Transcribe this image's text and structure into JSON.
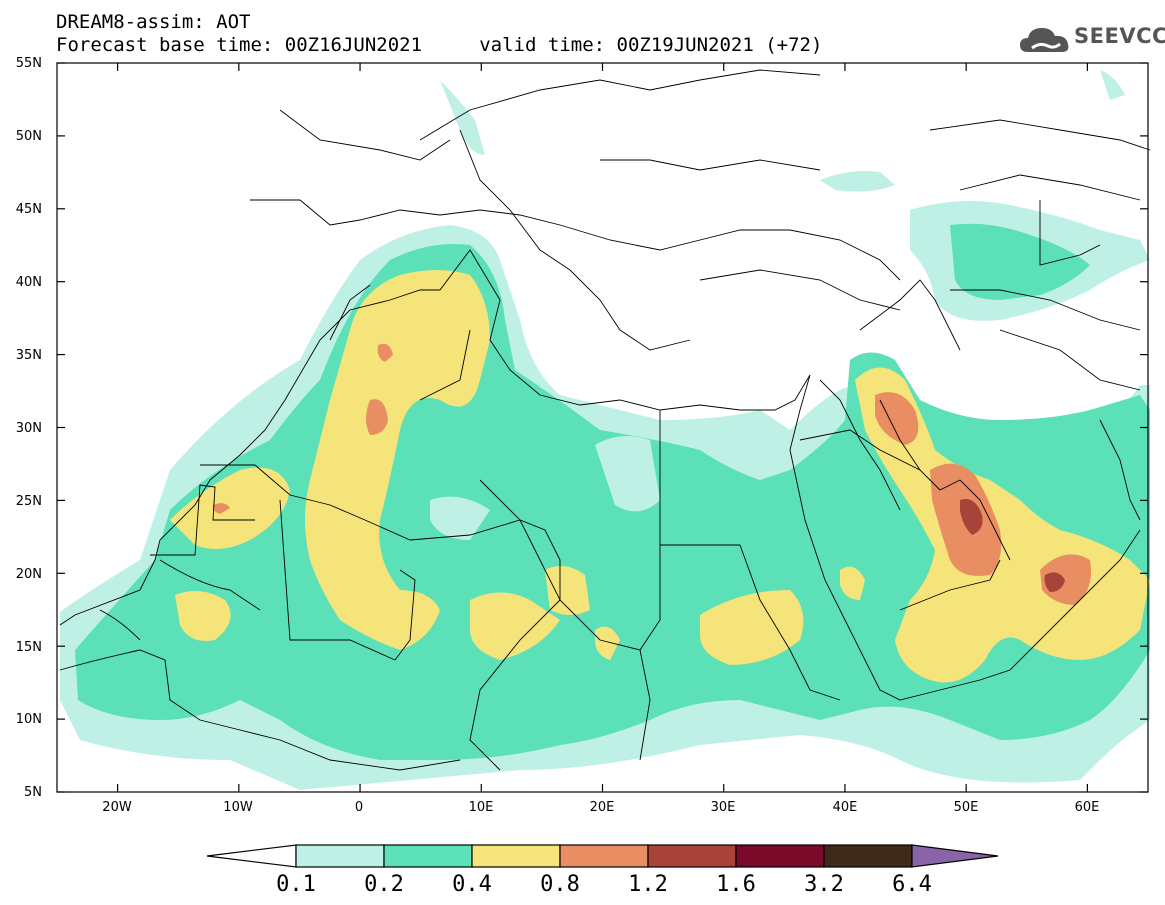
{
  "title_line1": "DREAM8-assim: AOT",
  "title_line2": "Forecast base time: 00Z16JUN2021     valid time: 00Z19JUN2021 (+72)",
  "logo_text": "SEEVCCC",
  "map": {
    "lon_range": [
      -25,
      65
    ],
    "lat_range": [
      5,
      55
    ],
    "lat_labels": [
      "55N",
      "50N",
      "45N",
      "40N",
      "35N",
      "30N",
      "25N",
      "20N",
      "15N",
      "10N",
      "5N"
    ],
    "lon_labels": [
      "20W",
      "10W",
      "0",
      "10E",
      "20E",
      "30E",
      "40E",
      "50E",
      "60E"
    ]
  },
  "colorbar": {
    "labels": [
      "0.1",
      "0.2",
      "0.4",
      "0.8",
      "1.2",
      "1.6",
      "3.2",
      "6.4"
    ],
    "colors": [
      "#ffffff",
      "#bff0e6",
      "#5ce0b8",
      "#f5e47a",
      "#e98e62",
      "#a8433a",
      "#7a0a2a",
      "#3d2a18",
      "#8a64a8"
    ]
  },
  "field_colors": {
    "lt01": "#bff0e6",
    "c02": "#5ce0b8",
    "c04": "#f5e47a",
    "c08": "#e98e62",
    "c12": "#a8433a"
  }
}
